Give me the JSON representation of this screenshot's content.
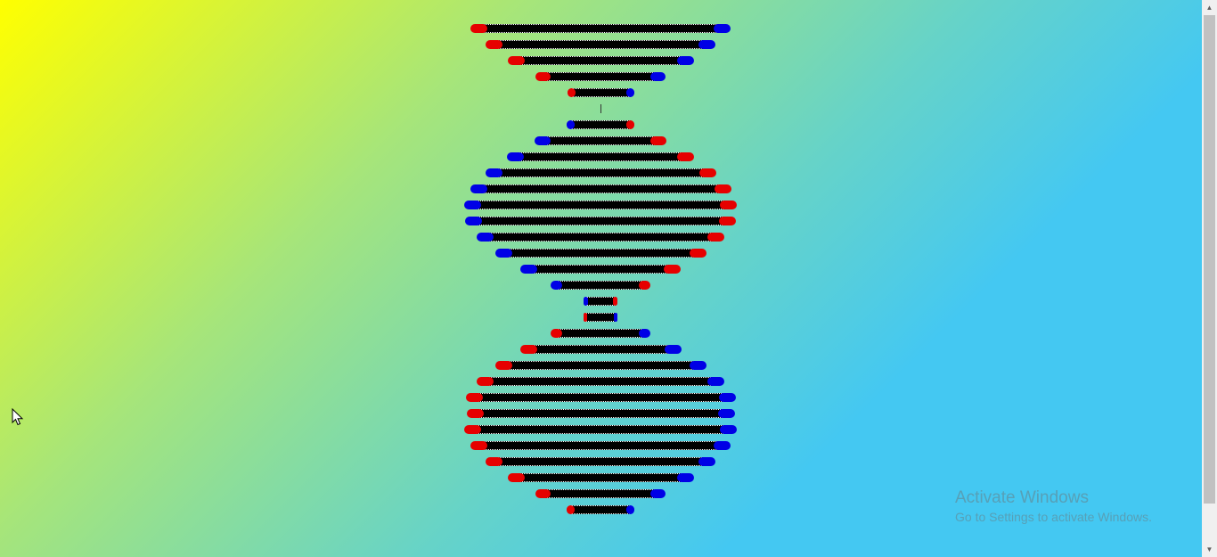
{
  "helix": {
    "colors": {
      "left_start": "#e60000",
      "right_start": "#0000e6",
      "bar": "#000000"
    },
    "rungs": [
      {
        "w": 292,
        "f": "red"
      },
      {
        "w": 258,
        "f": "red"
      },
      {
        "w": 209,
        "f": "red"
      },
      {
        "w": 147,
        "f": "red"
      },
      {
        "w": 75,
        "f": "red"
      },
      {
        "w": 1,
        "f": "line"
      },
      {
        "w": 77,
        "f": "blue"
      },
      {
        "w": 148,
        "f": "blue"
      },
      {
        "w": 210,
        "f": "blue"
      },
      {
        "w": 259,
        "f": "blue"
      },
      {
        "w": 293,
        "f": "blue"
      },
      {
        "w": 306,
        "f": "blue"
      },
      {
        "w": 304,
        "f": "blue"
      },
      {
        "w": 278,
        "f": "blue"
      },
      {
        "w": 237,
        "f": "blue"
      },
      {
        "w": 180,
        "f": "blue"
      },
      {
        "w": 112,
        "f": "blue"
      },
      {
        "w": 38,
        "f": "blue"
      },
      {
        "w": 39,
        "f": "red"
      },
      {
        "w": 112,
        "f": "red"
      },
      {
        "w": 181,
        "f": "red"
      },
      {
        "w": 237,
        "f": "red"
      },
      {
        "w": 278,
        "f": "red"
      },
      {
        "w": 303,
        "f": "red"
      },
      {
        "w": 301,
        "f": "red"
      },
      {
        "w": 306,
        "f": "red"
      },
      {
        "w": 292,
        "f": "red"
      },
      {
        "w": 258,
        "f": "red"
      },
      {
        "w": 209,
        "f": "red"
      },
      {
        "w": 147,
        "f": "red"
      },
      {
        "w": 76,
        "f": "red"
      }
    ]
  },
  "watermark": {
    "title": "Activate Windows",
    "subtitle": "Go to Settings to activate Windows."
  },
  "scrollbar": {
    "up_icon": "▲",
    "down_icon": "▼"
  }
}
